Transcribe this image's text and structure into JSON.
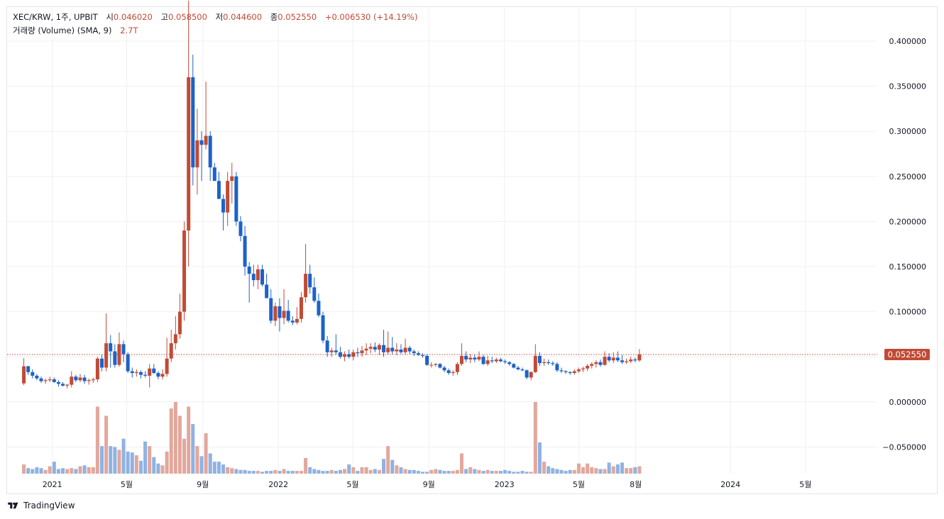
{
  "legend": {
    "symbol": "XEC/KRW, 1주, UPBIT",
    "open_label": "시",
    "open": "0.046020",
    "high_label": "고",
    "high": "0.058500",
    "low_label": "저",
    "low": "0.044600",
    "close_label": "종",
    "close": "0.052550",
    "change": "+0.006530 (+14.19%)",
    "volume_label": "거래량 (Volume) (SMA, 9)",
    "volume_value": "2.7T"
  },
  "footer": {
    "brand": "TradingView"
  },
  "colors": {
    "up": "#c24a35",
    "down": "#1c62c9",
    "vol_up": "#e2a79c",
    "vol_down": "#8fb2e2",
    "grid": "#f0f0f0",
    "last_price": "#c24a35"
  },
  "chart_data": {
    "type": "candlestick",
    "interval": "1주",
    "exchange": "UPBIT",
    "pair": "XEC/KRW",
    "last_price": "0.052550",
    "ylim": [
      -0.08,
      0.44
    ],
    "y_ticks": [
      "0.400000",
      "0.350000",
      "0.300000",
      "0.250000",
      "0.200000",
      "0.150000",
      "0.100000",
      "0.050000",
      "0.000000",
      "−0.050000"
    ],
    "y_tick_values": [
      0.4,
      0.35,
      0.3,
      0.25,
      0.2,
      0.15,
      0.1,
      0.05,
      0.0,
      -0.05
    ],
    "x_ticks": [
      {
        "label": "2021",
        "date": "2021-01-01"
      },
      {
        "label": "5월",
        "date": "2021-05-01"
      },
      {
        "label": "9월",
        "date": "2021-09-01"
      },
      {
        "label": "2022",
        "date": "2022-01-01"
      },
      {
        "label": "5월",
        "date": "2022-05-01"
      },
      {
        "label": "9월",
        "date": "2022-09-01"
      },
      {
        "label": "2023",
        "date": "2023-01-01"
      },
      {
        "label": "5월",
        "date": "2023-05-01"
      },
      {
        "label": "8월",
        "date": "2023-08-01"
      },
      {
        "label": "2024",
        "date": "2024-01-01"
      },
      {
        "label": "5월",
        "date": "2024-05-01"
      }
    ],
    "x_range": [
      "2020-10-20",
      "2024-08-25"
    ],
    "candles": {
      "start_week": "2020-11-16",
      "ohlc": [
        [
          0.0205,
          0.0485,
          0.0185,
          0.0395
        ],
        [
          0.0395,
          0.04,
          0.03,
          0.033
        ],
        [
          0.033,
          0.036,
          0.026,
          0.029
        ],
        [
          0.029,
          0.031,
          0.024,
          0.026
        ],
        [
          0.026,
          0.028,
          0.021,
          0.023
        ],
        [
          0.023,
          0.026,
          0.02,
          0.024
        ],
        [
          0.024,
          0.028,
          0.022,
          0.025
        ],
        [
          0.025,
          0.027,
          0.021,
          0.022
        ],
        [
          0.022,
          0.024,
          0.017,
          0.02
        ],
        [
          0.02,
          0.022,
          0.017,
          0.018
        ],
        [
          0.018,
          0.02,
          0.015,
          0.019
        ],
        [
          0.019,
          0.034,
          0.016,
          0.028
        ],
        [
          0.028,
          0.03,
          0.022,
          0.024
        ],
        [
          0.024,
          0.031,
          0.022,
          0.027
        ],
        [
          0.027,
          0.03,
          0.02,
          0.023
        ],
        [
          0.023,
          0.026,
          0.019,
          0.024
        ],
        [
          0.024,
          0.027,
          0.021,
          0.025
        ],
        [
          0.025,
          0.05,
          0.022,
          0.048
        ],
        [
          0.048,
          0.052,
          0.034,
          0.038
        ],
        [
          0.038,
          0.098,
          0.034,
          0.065
        ],
        [
          0.065,
          0.074,
          0.038,
          0.056
        ],
        [
          0.056,
          0.064,
          0.038,
          0.041
        ],
        [
          0.041,
          0.077,
          0.039,
          0.064
        ],
        [
          0.064,
          0.068,
          0.044,
          0.053
        ],
        [
          0.053,
          0.055,
          0.032,
          0.034
        ],
        [
          0.034,
          0.038,
          0.027,
          0.032
        ],
        [
          0.032,
          0.036,
          0.028,
          0.033
        ],
        [
          0.033,
          0.035,
          0.026,
          0.03
        ],
        [
          0.03,
          0.034,
          0.027,
          0.029
        ],
        [
          0.029,
          0.042,
          0.016,
          0.037
        ],
        [
          0.037,
          0.042,
          0.031,
          0.032
        ],
        [
          0.032,
          0.034,
          0.025,
          0.028
        ],
        [
          0.028,
          0.036,
          0.025,
          0.031
        ],
        [
          0.031,
          0.071,
          0.028,
          0.048
        ],
        [
          0.048,
          0.08,
          0.044,
          0.065
        ],
        [
          0.065,
          0.095,
          0.058,
          0.075
        ],
        [
          0.075,
          0.12,
          0.07,
          0.1
        ],
        [
          0.1,
          0.2,
          0.09,
          0.19
        ],
        [
          0.19,
          0.445,
          0.15,
          0.36
        ],
        [
          0.36,
          0.385,
          0.24,
          0.26
        ],
        [
          0.26,
          0.325,
          0.23,
          0.29
        ],
        [
          0.29,
          0.3,
          0.245,
          0.285
        ],
        [
          0.285,
          0.355,
          0.28,
          0.295
        ],
        [
          0.295,
          0.3,
          0.245,
          0.26
        ],
        [
          0.26,
          0.265,
          0.245,
          0.245
        ],
        [
          0.245,
          0.255,
          0.225,
          0.225
        ],
        [
          0.225,
          0.23,
          0.19,
          0.21
        ],
        [
          0.21,
          0.255,
          0.195,
          0.245
        ],
        [
          0.245,
          0.265,
          0.22,
          0.25
        ],
        [
          0.25,
          0.255,
          0.195,
          0.2
        ],
        [
          0.2,
          0.206,
          0.178,
          0.184
        ],
        [
          0.184,
          0.195,
          0.14,
          0.15
        ],
        [
          0.15,
          0.155,
          0.11,
          0.142
        ],
        [
          0.142,
          0.152,
          0.128,
          0.135
        ],
        [
          0.135,
          0.152,
          0.125,
          0.147
        ],
        [
          0.147,
          0.152,
          0.128,
          0.13
        ],
        [
          0.13,
          0.142,
          0.115,
          0.115
        ],
        [
          0.115,
          0.125,
          0.087,
          0.09
        ],
        [
          0.09,
          0.11,
          0.084,
          0.106
        ],
        [
          0.106,
          0.115,
          0.078,
          0.093
        ],
        [
          0.093,
          0.125,
          0.086,
          0.101
        ],
        [
          0.101,
          0.113,
          0.088,
          0.09
        ],
        [
          0.09,
          0.095,
          0.085,
          0.088
        ],
        [
          0.088,
          0.105,
          0.086,
          0.092
        ],
        [
          0.092,
          0.122,
          0.088,
          0.116
        ],
        [
          0.116,
          0.175,
          0.11,
          0.142
        ],
        [
          0.142,
          0.152,
          0.12,
          0.127
        ],
        [
          0.127,
          0.138,
          0.11,
          0.112
        ],
        [
          0.112,
          0.12,
          0.094,
          0.096
        ],
        [
          0.096,
          0.1,
          0.065,
          0.068
        ],
        [
          0.068,
          0.073,
          0.05,
          0.055
        ],
        [
          0.055,
          0.06,
          0.05,
          0.057
        ],
        [
          0.057,
          0.075,
          0.052,
          0.055
        ],
        [
          0.055,
          0.061,
          0.048,
          0.05
        ],
        [
          0.05,
          0.056,
          0.045,
          0.053
        ],
        [
          0.053,
          0.058,
          0.048,
          0.05
        ],
        [
          0.05,
          0.058,
          0.046,
          0.055
        ],
        [
          0.055,
          0.06,
          0.05,
          0.054
        ],
        [
          0.054,
          0.062,
          0.05,
          0.057
        ],
        [
          0.057,
          0.065,
          0.052,
          0.059
        ],
        [
          0.059,
          0.065,
          0.054,
          0.061
        ],
        [
          0.061,
          0.066,
          0.055,
          0.058
        ],
        [
          0.058,
          0.065,
          0.052,
          0.063
        ],
        [
          0.063,
          0.08,
          0.05,
          0.055
        ],
        [
          0.055,
          0.078,
          0.052,
          0.06
        ],
        [
          0.06,
          0.072,
          0.053,
          0.056
        ],
        [
          0.056,
          0.065,
          0.052,
          0.058
        ],
        [
          0.058,
          0.064,
          0.053,
          0.055
        ],
        [
          0.055,
          0.07,
          0.052,
          0.06
        ],
        [
          0.06,
          0.062,
          0.053,
          0.056
        ],
        [
          0.056,
          0.058,
          0.051,
          0.054
        ],
        [
          0.054,
          0.056,
          0.051,
          0.052
        ],
        [
          0.052,
          0.054,
          0.049,
          0.051
        ],
        [
          0.051,
          0.053,
          0.04,
          0.041
        ],
        [
          0.041,
          0.044,
          0.038,
          0.041
        ],
        [
          0.041,
          0.043,
          0.039,
          0.042
        ],
        [
          0.042,
          0.043,
          0.037,
          0.038
        ],
        [
          0.038,
          0.04,
          0.033,
          0.035
        ],
        [
          0.035,
          0.037,
          0.03,
          0.032
        ],
        [
          0.032,
          0.035,
          0.029,
          0.033
        ],
        [
          0.033,
          0.044,
          0.03,
          0.042
        ],
        [
          0.042,
          0.065,
          0.04,
          0.051
        ],
        [
          0.051,
          0.056,
          0.044,
          0.047
        ],
        [
          0.047,
          0.053,
          0.043,
          0.049
        ],
        [
          0.049,
          0.053,
          0.044,
          0.047
        ],
        [
          0.047,
          0.056,
          0.045,
          0.05
        ],
        [
          0.05,
          0.052,
          0.041,
          0.042
        ],
        [
          0.042,
          0.051,
          0.04,
          0.046
        ],
        [
          0.046,
          0.05,
          0.043,
          0.045
        ],
        [
          0.045,
          0.049,
          0.043,
          0.047
        ],
        [
          0.047,
          0.049,
          0.044,
          0.045
        ],
        [
          0.045,
          0.047,
          0.042,
          0.044
        ],
        [
          0.044,
          0.045,
          0.04,
          0.042
        ],
        [
          0.042,
          0.043,
          0.037,
          0.038
        ],
        [
          0.038,
          0.04,
          0.035,
          0.036
        ],
        [
          0.036,
          0.038,
          0.034,
          0.035
        ],
        [
          0.035,
          0.036,
          0.025,
          0.027
        ],
        [
          0.027,
          0.034,
          0.024,
          0.033
        ],
        [
          0.033,
          0.064,
          0.032,
          0.051
        ],
        [
          0.051,
          0.055,
          0.04,
          0.043
        ],
        [
          0.043,
          0.048,
          0.04,
          0.044
        ],
        [
          0.044,
          0.047,
          0.041,
          0.043
        ],
        [
          0.043,
          0.045,
          0.04,
          0.042
        ],
        [
          0.042,
          0.044,
          0.033,
          0.035
        ],
        [
          0.035,
          0.038,
          0.032,
          0.034
        ],
        [
          0.034,
          0.035,
          0.031,
          0.033
        ],
        [
          0.033,
          0.034,
          0.03,
          0.032
        ],
        [
          0.032,
          0.036,
          0.03,
          0.034
        ],
        [
          0.034,
          0.038,
          0.032,
          0.036
        ],
        [
          0.036,
          0.039,
          0.033,
          0.037
        ],
        [
          0.037,
          0.042,
          0.034,
          0.04
        ],
        [
          0.04,
          0.044,
          0.037,
          0.042
        ],
        [
          0.042,
          0.046,
          0.038,
          0.044
        ],
        [
          0.044,
          0.047,
          0.039,
          0.041
        ],
        [
          0.041,
          0.056,
          0.04,
          0.05
        ],
        [
          0.05,
          0.054,
          0.044,
          0.046
        ],
        [
          0.046,
          0.055,
          0.043,
          0.049
        ],
        [
          0.049,
          0.056,
          0.044,
          0.046
        ],
        [
          0.046,
          0.052,
          0.042,
          0.044
        ],
        [
          0.044,
          0.048,
          0.042,
          0.045
        ],
        [
          0.045,
          0.05,
          0.043,
          0.047
        ],
        [
          0.047,
          0.049,
          0.044,
          0.046
        ],
        [
          0.046,
          0.0585,
          0.0446,
          0.0526
        ]
      ],
      "volume": [
        0.1,
        0.06,
        0.05,
        0.07,
        0.06,
        0.04,
        0.08,
        0.13,
        0.05,
        0.06,
        0.05,
        0.06,
        0.05,
        0.08,
        0.09,
        0.07,
        0.07,
        0.73,
        0.3,
        0.63,
        0.3,
        0.29,
        0.26,
        0.38,
        0.24,
        0.23,
        0.2,
        0.14,
        0.35,
        0.3,
        0.18,
        0.11,
        0.09,
        0.24,
        0.71,
        0.78,
        0.63,
        0.38,
        0.73,
        0.54,
        0.3,
        0.19,
        0.44,
        0.22,
        0.13,
        0.13,
        0.1,
        0.07,
        0.06,
        0.05,
        0.04,
        0.04,
        0.03,
        0.03,
        0.03,
        0.02,
        0.03,
        0.03,
        0.04,
        0.03,
        0.05,
        0.03,
        0.03,
        0.03,
        0.03,
        0.17,
        0.07,
        0.05,
        0.04,
        0.03,
        0.03,
        0.04,
        0.03,
        0.04,
        0.05,
        0.1,
        0.07,
        0.03,
        0.07,
        0.07,
        0.04,
        0.05,
        0.04,
        0.16,
        0.3,
        0.15,
        0.09,
        0.07,
        0.05,
        0.04,
        0.04,
        0.03,
        0.02,
        0.02,
        0.04,
        0.05,
        0.04,
        0.03,
        0.03,
        0.03,
        0.04,
        0.22,
        0.05,
        0.07,
        0.05,
        0.04,
        0.03,
        0.04,
        0.03,
        0.03,
        0.03,
        0.04,
        0.03,
        0.02,
        0.02,
        0.03,
        0.02,
        0.02,
        0.78,
        0.34,
        0.13,
        0.08,
        0.06,
        0.05,
        0.04,
        0.03,
        0.04,
        0.04,
        0.11,
        0.07,
        0.11,
        0.07,
        0.06,
        0.05,
        0.05,
        0.12,
        0.08,
        0.1,
        0.12,
        0.06,
        0.06,
        0.07,
        0.08
      ],
      "volume_axis_note": "relative scale"
    }
  }
}
